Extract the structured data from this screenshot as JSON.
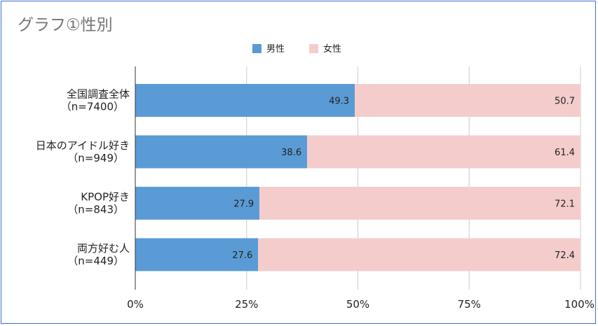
{
  "chart_data": {
    "type": "bar",
    "orientation": "horizontal",
    "stacked": true,
    "title": "グラフ①性別",
    "categories": [
      [
        "全国調査全体",
        "（n=7400）"
      ],
      [
        "日本のアイドル好き",
        "（n=949）"
      ],
      [
        "KPOP好き",
        "（n=843）"
      ],
      [
        "両方好む人",
        "（n=449）"
      ]
    ],
    "series": [
      {
        "name": "男性",
        "color": "#5b9bd5",
        "values": [
          49.3,
          38.6,
          27.9,
          27.6
        ]
      },
      {
        "name": "女性",
        "color": "#f4cccc",
        "values": [
          50.7,
          61.4,
          72.1,
          72.4
        ]
      }
    ],
    "value_labels": [
      [
        "49.3",
        "38.6",
        "27.9",
        "27.6"
      ],
      [
        "50.7",
        "61.4",
        "72.1",
        "72.4"
      ]
    ],
    "xlim": [
      0,
      100
    ],
    "xticks": [
      0,
      25,
      50,
      75,
      100
    ],
    "xtick_labels": [
      "0%",
      "25%",
      "50%",
      "75%",
      "100%"
    ],
    "grid": true,
    "legend_position": "top-center"
  }
}
